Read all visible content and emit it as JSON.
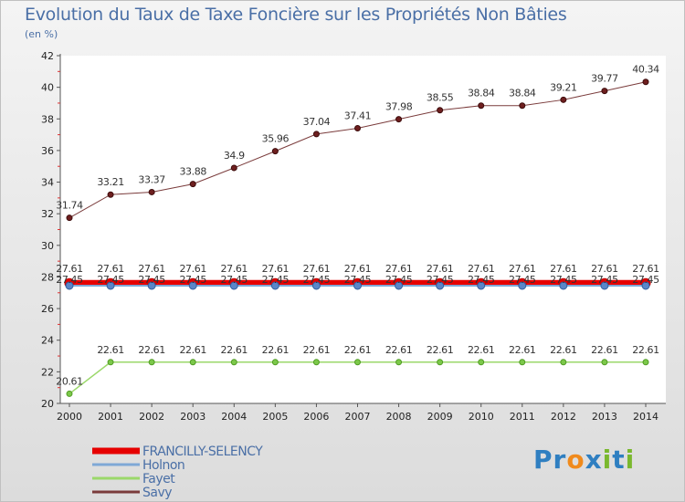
{
  "title": "Evolution du Taux de Taxe Foncière sur les Propriétés Non Bâties",
  "unit": "(en %)",
  "logo": {
    "text": "Proxiti",
    "letters": [
      {
        "ch": "P",
        "color": "#2f7fc1"
      },
      {
        "ch": "r",
        "color": "#2f7fc1"
      },
      {
        "ch": "o",
        "color": "#f08a1c"
      },
      {
        "ch": "x",
        "color": "#2f7fc1"
      },
      {
        "ch": "i",
        "color": "#7ab82e"
      },
      {
        "ch": "t",
        "color": "#2f7fc1"
      },
      {
        "ch": "i",
        "color": "#7ab82e"
      }
    ]
  },
  "chart_data": {
    "type": "line",
    "title": "Evolution du Taux de Taxe Foncière sur les Propriétés Non Bâties",
    "ylabel": "(en %)",
    "xlabel": "",
    "ylim": [
      20,
      42
    ],
    "yticks": [
      20,
      22,
      24,
      26,
      28,
      30,
      32,
      34,
      36,
      38,
      40,
      42
    ],
    "grid": false,
    "legend": "bottom-left",
    "categories": [
      "2000",
      "2001",
      "2002",
      "2003",
      "2004",
      "2005",
      "2006",
      "2007",
      "2008",
      "2009",
      "2010",
      "2011",
      "2012",
      "2013",
      "2014"
    ],
    "series": [
      {
        "name": "FRANCILLY-SELENCY",
        "color": "#e60000",
        "values": [
          27.61,
          27.61,
          27.61,
          27.61,
          27.61,
          27.61,
          27.61,
          27.61,
          27.61,
          27.61,
          27.61,
          27.61,
          27.61,
          27.61,
          27.61
        ],
        "labels": [
          "27.61",
          "27.61",
          "27.61",
          "27.61",
          "27.61",
          "27.61",
          "27.61",
          "27.61",
          "27.61",
          "27.61",
          "27.61",
          "27.61",
          "27.61",
          "27.61",
          "27.61"
        ]
      },
      {
        "name": "Holnon",
        "color": "#7fa8d6",
        "values": [
          27.45,
          27.45,
          27.45,
          27.45,
          27.45,
          27.45,
          27.45,
          27.45,
          27.45,
          27.45,
          27.45,
          27.45,
          27.45,
          27.45,
          27.45
        ],
        "labels": [
          "27.45",
          "27.45",
          "27.45",
          "27.45",
          "27.45",
          "27.45",
          "27.45",
          "27.45",
          "27.45",
          "27.45",
          "27.45",
          "27.45",
          "27.45",
          "27.45",
          "27.45"
        ]
      },
      {
        "name": "Fayet",
        "color": "#9bd86a",
        "values": [
          20.61,
          22.61,
          22.61,
          22.61,
          22.61,
          22.61,
          22.61,
          22.61,
          22.61,
          22.61,
          22.61,
          22.61,
          22.61,
          22.61,
          22.61
        ],
        "labels": [
          "20.61",
          "22.61",
          "22.61",
          "22.61",
          "22.61",
          "22.61",
          "22.61",
          "22.61",
          "22.61",
          "22.61",
          "22.61",
          "22.61",
          "22.61",
          "22.61",
          "22.61"
        ]
      },
      {
        "name": "Savy",
        "color": "#7a3b3b",
        "values": [
          31.74,
          33.21,
          33.37,
          33.88,
          34.9,
          35.96,
          37.04,
          37.41,
          37.98,
          38.55,
          38.84,
          38.84,
          39.21,
          39.77,
          40.34
        ],
        "labels": [
          "31.74",
          "33.21",
          "33.37",
          "33.88",
          "34.9",
          "35.96",
          "37.04",
          "37.41",
          "37.98",
          "38.55",
          "38.84",
          "38.84",
          "39.21",
          "39.77",
          "40.34"
        ]
      }
    ]
  }
}
